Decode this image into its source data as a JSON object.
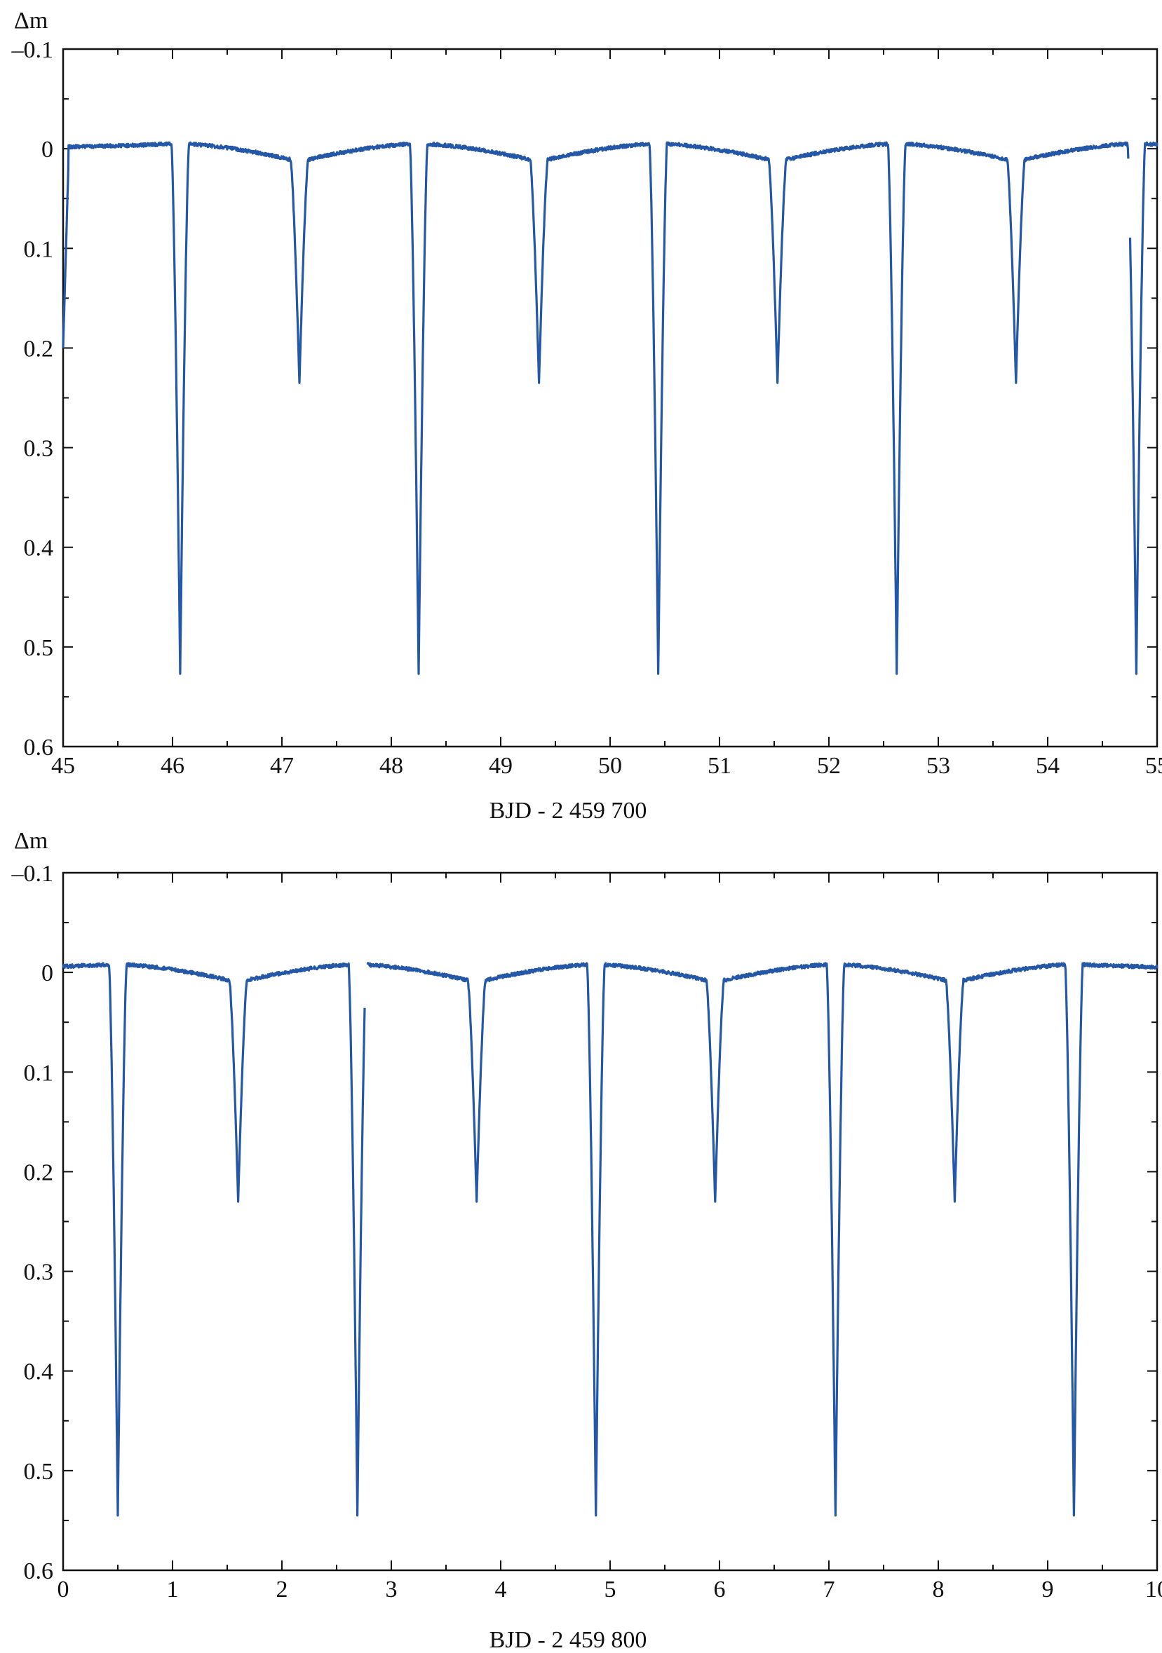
{
  "chart_data": [
    {
      "type": "line",
      "title": "",
      "ylabel": "Δm",
      "xlabel": "BJD - 2 459 700",
      "xlim": [
        45,
        55
      ],
      "ylim": [
        -0.1,
        0.6
      ],
      "y_inverted": true,
      "grid": false,
      "x_ticks": [
        "45",
        "46",
        "47",
        "48",
        "49",
        "50",
        "51",
        "52",
        "53",
        "54",
        "55"
      ],
      "y_ticks": [
        "–0.1",
        "0",
        "0.1",
        "0.2",
        "0.3",
        "0.4",
        "0.5",
        "0.6"
      ],
      "color": "#2458a6",
      "primary_minima": {
        "x": [
          46.07,
          48.25,
          50.44,
          52.62,
          54.81
        ],
        "depth": 0.527
      },
      "secondary_minima": {
        "x": [
          47.16,
          49.35,
          51.53,
          53.71
        ],
        "depth": 0.235
      },
      "baseline": {
        "out_of_eclipse_level": [
          0.013,
          -0.005
        ],
        "gap_x": [
          54.74,
          54.75
        ]
      }
    },
    {
      "type": "line",
      "title": "",
      "ylabel": "Δm",
      "xlabel": "BJD - 2 459 800",
      "xlim": [
        0,
        10
      ],
      "ylim": [
        -0.1,
        0.6
      ],
      "y_inverted": true,
      "grid": false,
      "x_ticks": [
        "0",
        "1",
        "2",
        "3",
        "4",
        "5",
        "6",
        "7",
        "8",
        "9",
        "10"
      ],
      "y_ticks": [
        "–0.1",
        "0",
        "0.1",
        "0.2",
        "0.3",
        "0.4",
        "0.5",
        "0.6"
      ],
      "color": "#2458a6",
      "primary_minima": {
        "x": [
          0.5,
          2.69,
          4.87,
          7.06,
          9.24
        ],
        "depth": 0.545
      },
      "secondary_minima": {
        "x": [
          1.6,
          3.78,
          5.96,
          8.15
        ],
        "depth": 0.23
      },
      "baseline": {
        "out_of_eclipse_level": [
          0.01,
          -0.008
        ],
        "gap_x": [
          2.76,
          2.78
        ]
      }
    }
  ]
}
